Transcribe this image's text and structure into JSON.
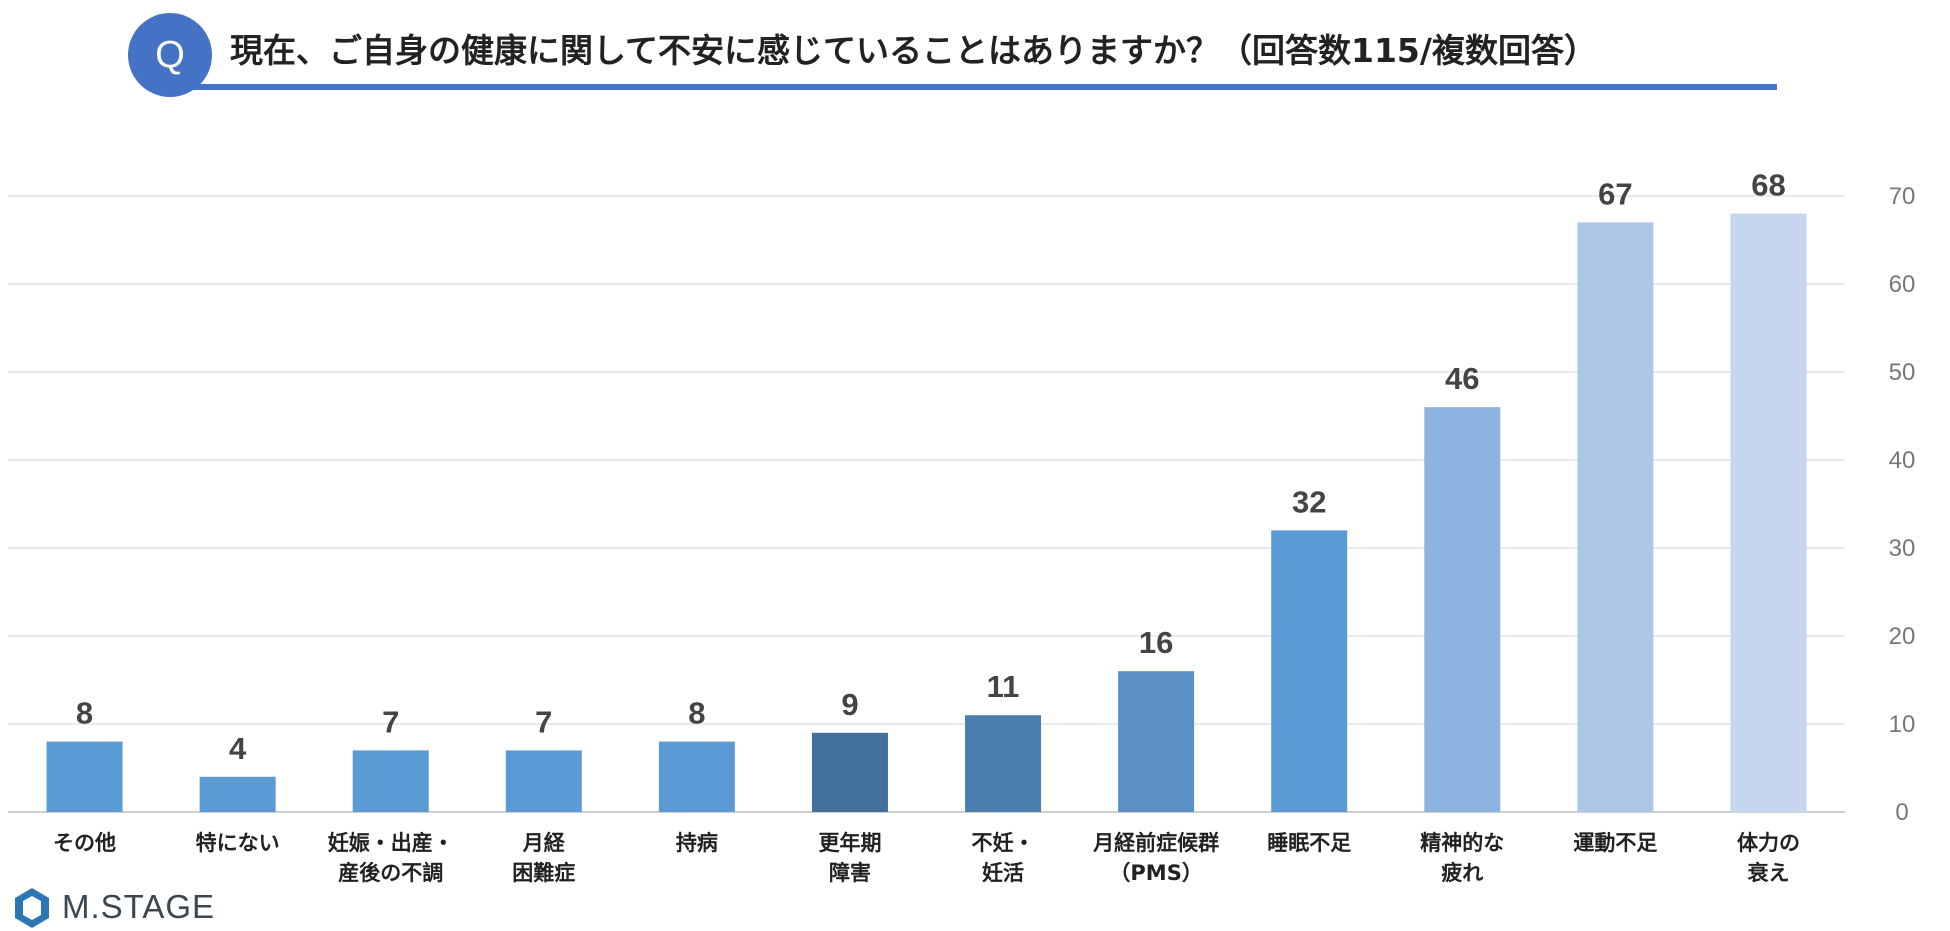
{
  "header": {
    "badge": "Q",
    "title": "現在、ご自身の健康に関して不安に感じていることはありますか？（回答数115/複数回答）"
  },
  "logo": {
    "text": "M.STAGE"
  },
  "colors": {
    "accent": "#4472C4",
    "bars": [
      "#5B9BD5",
      "#5B9BD5",
      "#5B9BD5",
      "#5B9BD5",
      "#5B9BD5",
      "#41719C",
      "#4A7FB0",
      "#5A90C5",
      "#5B9BD5",
      "#8DB3E0",
      "#ACC7E8",
      "#C5D6EE"
    ]
  },
  "chart_data": {
    "type": "bar",
    "categories": [
      [
        "その他"
      ],
      [
        "特にない"
      ],
      [
        "妊娠・出産・",
        "産後の不調"
      ],
      [
        "月経",
        "困難症"
      ],
      [
        "持病"
      ],
      [
        "更年期",
        "障害"
      ],
      [
        "不妊・",
        "妊活"
      ],
      [
        "月経前症候群",
        "（PMS）"
      ],
      [
        "睡眠不足"
      ],
      [
        "精神的な",
        "疲れ"
      ],
      [
        "運動不足"
      ],
      [
        "体力の",
        "衰え"
      ]
    ],
    "values": [
      8,
      4,
      7,
      7,
      8,
      9,
      11,
      16,
      32,
      46,
      67,
      68
    ],
    "ylim": [
      0,
      70
    ],
    "yticks": [
      0,
      10,
      20,
      30,
      40,
      50,
      60,
      70
    ],
    "y_axis_position": "right",
    "grid": true,
    "legend": "none"
  }
}
